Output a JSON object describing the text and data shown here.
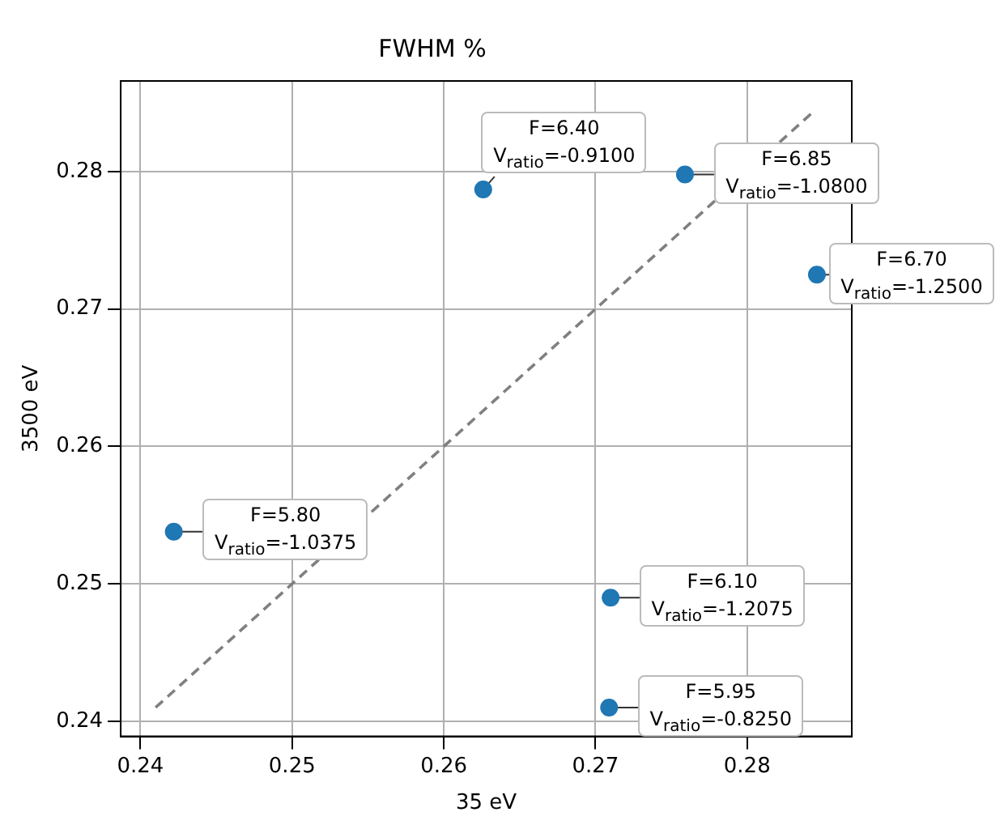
{
  "chart_data": {
    "type": "scatter",
    "title": "FWHM %",
    "xlabel": "35 eV",
    "ylabel": "3500 eV",
    "xlim": [
      0.2387,
      0.2869
    ],
    "ylim": [
      0.2389,
      0.2866
    ],
    "xticks": [
      0.24,
      0.25,
      0.26,
      0.27,
      0.28
    ],
    "yticks": [
      0.24,
      0.25,
      0.26,
      0.27,
      0.28
    ],
    "grid": true,
    "marker": "circle",
    "series": [
      {
        "type": "scatter",
        "color": "#1f77b4",
        "x": [
          0.2626,
          0.2759,
          0.2846,
          0.2422,
          0.271,
          0.2709
        ],
        "values": [
          0.2787,
          0.2798,
          0.2725,
          0.2538,
          0.249,
          0.241
        ]
      },
      {
        "type": "line",
        "color": "#808080",
        "line_style": "dashed",
        "marker": "none",
        "x": [
          0.241,
          0.2845
        ],
        "values": [
          0.241,
          0.2845
        ]
      }
    ],
    "annotations": [
      {
        "text": "F=6.40\nV$_{ratio}$=-0.9100",
        "x": 0.2626,
        "y": 0.2787
      },
      {
        "text": "F=6.85\nV$_{ratio}$=-1.0800",
        "x": 0.2759,
        "y": 0.2798
      },
      {
        "text": "F=6.70\nV$_{ratio}$=-1.2500",
        "x": 0.2846,
        "y": 0.2725
      },
      {
        "text": "F=5.80\nV$_{ratio}$=-1.0375",
        "x": 0.2422,
        "y": 0.2538
      },
      {
        "text": "F=6.10\nV$_{ratio}$=-1.2075",
        "x": 0.271,
        "y": 0.249
      },
      {
        "text": "F=5.95\nV$_{ratio}$=-0.8250",
        "x": 0.2709,
        "y": 0.241
      }
    ]
  }
}
